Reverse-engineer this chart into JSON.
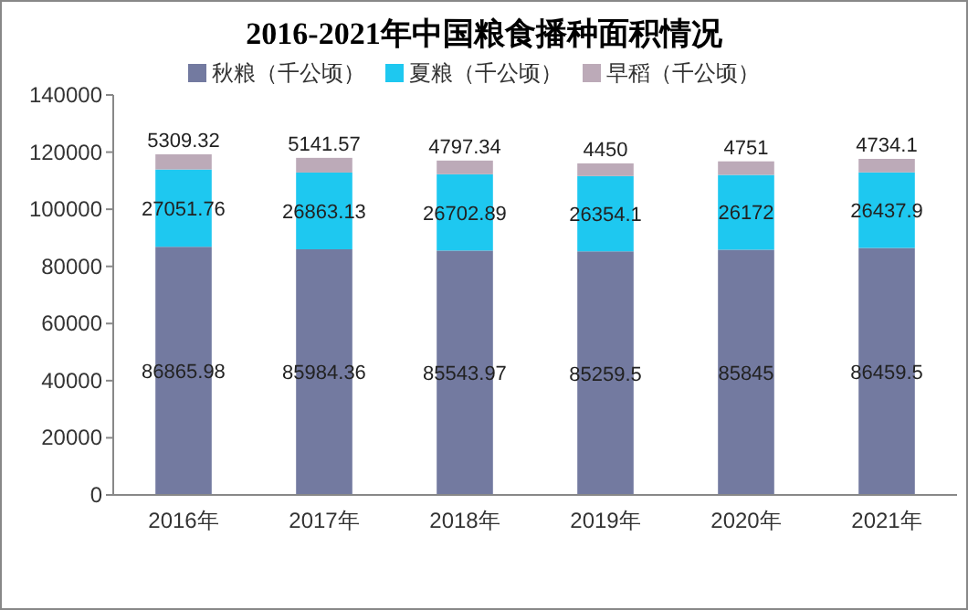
{
  "chart_data": {
    "type": "bar",
    "title": "2016-2021年中国粮食播种面积情况",
    "stacked": true,
    "data_labels": true,
    "legend": "top",
    "categories": [
      "2016年",
      "2017年",
      "2018年",
      "2019年",
      "2020年",
      "2021年"
    ],
    "series": [
      {
        "name": "秋粮（千公顷）",
        "color": "#737aa0",
        "values": [
          86865.98,
          85984.36,
          85543.97,
          85259.5,
          85845,
          86459.5
        ]
      },
      {
        "name": "夏粮（千公顷）",
        "color": "#1ec8f0",
        "values": [
          27051.76,
          26863.13,
          26702.89,
          26354.1,
          26172,
          26437.9
        ]
      },
      {
        "name": "早稻（千公顷）",
        "color": "#bcaab8",
        "values": [
          5309.32,
          5141.57,
          4797.34,
          4450,
          4751,
          4734.1
        ]
      }
    ],
    "ylim": [
      0,
      140000
    ],
    "yticks": [
      0,
      20000,
      40000,
      60000,
      80000,
      100000,
      120000,
      140000
    ]
  }
}
